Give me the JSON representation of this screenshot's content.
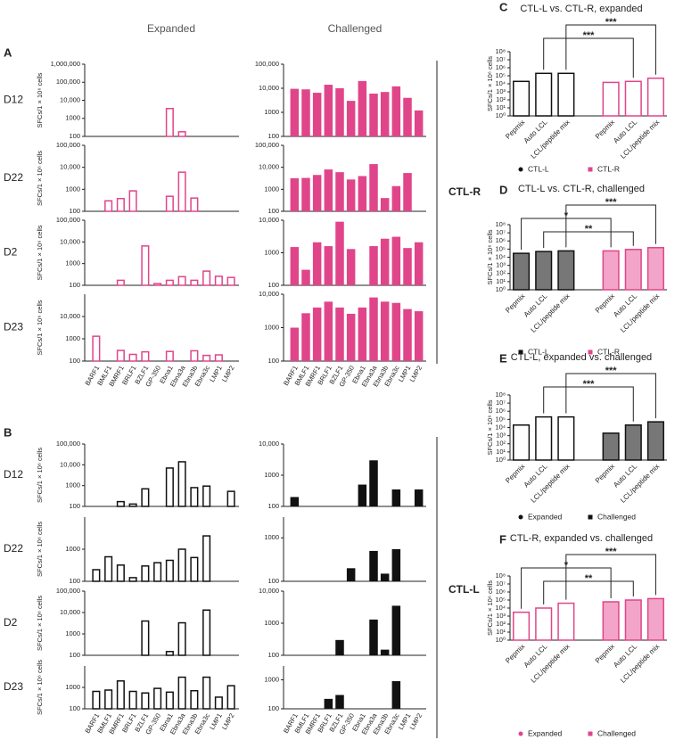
{
  "panel_labels": [
    "A",
    "B",
    "C",
    "D",
    "E",
    "F"
  ],
  "columns": [
    "Expanded",
    "Challenged"
  ],
  "group_labels": [
    "CTL-R",
    "CTL-L"
  ],
  "epitopes": [
    "BARF1",
    "BMLF1",
    "BMRF1",
    "BRLF1",
    "BZLF1",
    "GP-350",
    "Ebna1",
    "Ebna3a",
    "Ebna3b",
    "Ebna3c",
    "LMP1",
    "LMP2"
  ],
  "chart_data": [
    {
      "type": "bar",
      "row": "D12",
      "ylabel": "SFCs/1 × 10⁶ cells",
      "color": "#e0458a",
      "filled": false,
      "log": true,
      "ylim": [
        100,
        1000000
      ],
      "yticks": [
        100,
        1000,
        {
          "value": 10000,
          "label": "10,000"
        },
        {
          "value": 100000,
          "label": "100,000"
        },
        {
          "value": 1000000,
          "label": "1,000,000"
        }
      ],
      "values": [
        null,
        null,
        null,
        null,
        null,
        null,
        3500,
        180,
        null,
        null,
        null,
        null
      ]
    },
    {
      "type": "bar",
      "color": "#e0458a",
      "filled": true,
      "log": true,
      "ylim": [
        100,
        100000
      ],
      "yticks": [
        100,
        1000,
        {
          "value": 10000,
          "label": "10,000"
        },
        {
          "value": 100000,
          "label": "100,000"
        }
      ],
      "values": [
        9500,
        9000,
        6500,
        14000,
        10000,
        3000,
        20000,
        6000,
        7000,
        12000,
        4000,
        1200
      ]
    },
    {
      "type": "bar",
      "row": "D22",
      "ylabel": "SFCs/1 × 10⁶ cells",
      "color": "#e0458a",
      "filled": false,
      "log": true,
      "ylim": [
        100,
        100000
      ],
      "yticks": [
        100,
        1000,
        {
          "value": 10000,
          "label": "10,000"
        },
        {
          "value": 100000,
          "label": "100,000"
        }
      ],
      "values": [
        null,
        300,
        380,
        850,
        null,
        null,
        480,
        6000,
        400,
        null,
        null,
        null
      ]
    },
    {
      "type": "bar",
      "color": "#e0458a",
      "filled": true,
      "log": true,
      "ylim": [
        100,
        100000
      ],
      "yticks": [
        100,
        1000,
        {
          "value": 10000,
          "label": "10,000"
        },
        {
          "value": 100000,
          "label": "100,000"
        }
      ],
      "values": [
        3200,
        3300,
        4500,
        8000,
        6000,
        2800,
        4000,
        14000,
        400,
        1400,
        5500,
        null
      ]
    },
    {
      "type": "bar",
      "row": "D2",
      "ylabel": "SFCs/1 × 10⁶ cells",
      "color": "#e0458a",
      "filled": false,
      "log": true,
      "ylim": [
        100,
        100000
      ],
      "yticks": [
        100,
        1000,
        {
          "value": 10000,
          "label": "10,000"
        },
        {
          "value": 100000,
          "label": "100,000"
        }
      ],
      "values": [
        null,
        null,
        170,
        null,
        6500,
        120,
        170,
        250,
        170,
        450,
        260,
        230
      ]
    },
    {
      "type": "bar",
      "color": "#e0458a",
      "filled": true,
      "log": true,
      "ylim": [
        100,
        10000
      ],
      "yticks": [
        100,
        1000,
        {
          "value": 10000,
          "label": "10,000"
        }
      ],
      "values": [
        1500,
        300,
        2100,
        1600,
        9000,
        1300,
        null,
        1600,
        2700,
        3100,
        1400,
        2100
      ]
    },
    {
      "type": "bar",
      "row": "D23",
      "ylabel": "SFCs/1 × 10⁶ cells",
      "color": "#e0458a",
      "filled": false,
      "log": true,
      "ylim": [
        100,
        100000
      ],
      "yticks": [
        100,
        1000,
        {
          "value": 10000,
          "label": "10,000"
        }
      ],
      "values": [
        1300,
        null,
        300,
        200,
        260,
        null,
        270,
        null,
        290,
        180,
        190,
        null
      ]
    },
    {
      "type": "bar",
      "color": "#e0458a",
      "filled": true,
      "log": true,
      "ylim": [
        100,
        10000
      ],
      "yticks": [
        100,
        1000,
        {
          "value": 10000,
          "label": "10,000"
        }
      ],
      "values": [
        1000,
        2700,
        4000,
        6000,
        4000,
        2600,
        4000,
        8000,
        6000,
        5500,
        3600,
        3100
      ]
    },
    {
      "type": "bar",
      "row": "D12",
      "ylabel": "SFCs/1 × 10⁶ cells",
      "color": "#111111",
      "filled": false,
      "log": true,
      "ylim": [
        100,
        100000
      ],
      "yticks": [
        100,
        1000,
        {
          "value": 10000,
          "label": "10,000"
        },
        {
          "value": 100000,
          "label": "100,000"
        }
      ],
      "values": [
        null,
        null,
        170,
        130,
        700,
        null,
        7000,
        14000,
        800,
        950,
        null,
        530
      ]
    },
    {
      "type": "bar",
      "color": "#111111",
      "filled": true,
      "log": true,
      "ylim": [
        100,
        10000
      ],
      "yticks": [
        100,
        1000,
        {
          "value": 10000,
          "label": "10,000"
        }
      ],
      "values": [
        200,
        null,
        null,
        null,
        null,
        null,
        500,
        3000,
        null,
        350,
        null,
        350
      ]
    },
    {
      "type": "bar",
      "row": "D22",
      "ylabel": "SFCs/1 × 10⁶ cells",
      "color": "#111111",
      "filled": false,
      "log": true,
      "ylim": [
        100,
        10000
      ],
      "yticks": [
        100,
        1000
      ],
      "values": [
        230,
        580,
        320,
        130,
        300,
        380,
        450,
        1000,
        550,
        2600,
        null,
        null
      ]
    },
    {
      "type": "bar",
      "color": "#111111",
      "filled": true,
      "log": true,
      "ylim": [
        100,
        3000
      ],
      "yticks": [
        100,
        1000
      ],
      "values": [
        null,
        null,
        null,
        null,
        null,
        200,
        null,
        500,
        150,
        550,
        null,
        null
      ]
    },
    {
      "type": "bar",
      "row": "D2",
      "ylabel": "SFCs/1 × 10⁶ cells",
      "color": "#111111",
      "filled": false,
      "log": true,
      "ylim": [
        100,
        100000
      ],
      "yticks": [
        100,
        1000,
        {
          "value": 10000,
          "label": "10,000"
        },
        {
          "value": 100000,
          "label": "100,000"
        }
      ],
      "values": [
        null,
        null,
        null,
        null,
        4000,
        null,
        150,
        3300,
        null,
        13000,
        null,
        null
      ]
    },
    {
      "type": "bar",
      "color": "#111111",
      "filled": true,
      "log": true,
      "ylim": [
        100,
        10000
      ],
      "yticks": [
        100,
        1000,
        {
          "value": 10000,
          "label": "10,000"
        }
      ],
      "values": [
        null,
        null,
        null,
        null,
        300,
        null,
        null,
        1300,
        150,
        3500,
        null,
        null
      ]
    },
    {
      "type": "bar",
      "row": "D23",
      "ylabel": "SFCs/1 × 10⁶ cells",
      "color": "#111111",
      "filled": false,
      "log": true,
      "ylim": [
        100,
        10000
      ],
      "yticks": [
        100,
        1000
      ],
      "values": [
        650,
        750,
        2000,
        650,
        550,
        900,
        600,
        3000,
        700,
        3000,
        350,
        1200
      ]
    },
    {
      "type": "bar",
      "color": "#111111",
      "filled": true,
      "log": true,
      "ylim": [
        100,
        3000
      ],
      "yticks": [
        100,
        1000
      ],
      "values": [
        null,
        null,
        null,
        220,
        300,
        null,
        null,
        null,
        null,
        900,
        null,
        null
      ]
    },
    {
      "type": "grouped_bar",
      "title": "CTL-L vs. CTL-R, expanded",
      "ylabel": "SFCs/1 × 10⁶ cells",
      "log": true,
      "ylim": [
        1,
        100000000
      ],
      "yticks": [
        {
          "value": 1,
          "label": "10⁰"
        },
        {
          "value": 10,
          "label": "10¹"
        },
        {
          "value": 100,
          "label": "10²"
        },
        {
          "value": 1000,
          "label": "10³"
        },
        {
          "value": 10000,
          "label": "10⁴"
        },
        {
          "value": 100000,
          "label": "10⁵"
        },
        {
          "value": 1000000,
          "label": "10⁶"
        },
        {
          "value": 10000000,
          "label": "10⁷"
        },
        {
          "value": 100000000,
          "label": "10⁸"
        }
      ],
      "categories": [
        "Pepmix",
        "Auto LCL",
        "LCL/peptide mix"
      ],
      "series": [
        {
          "name": "CTL-L",
          "color": "#111111",
          "fill": "#ffffff",
          "marker": "circle",
          "values": [
            20000,
            200000,
            200000
          ]
        },
        {
          "name": "CTL-R",
          "color": "#e0458a",
          "fill": "#ffffff",
          "marker": "square",
          "values": [
            15000,
            20000,
            50000
          ]
        }
      ],
      "annotations": [
        {
          "text": "***",
          "pair": [
            2,
            5
          ]
        },
        {
          "text": "***",
          "pair": [
            1,
            4
          ]
        }
      ]
    },
    {
      "type": "grouped_bar",
      "title": "CTL-L vs. CTL-R, challenged",
      "ylabel": "SFCs/1 × 10⁶ cells",
      "log": true,
      "ylim": [
        1,
        100000000
      ],
      "yticks": [
        {
          "value": 1,
          "label": "10⁰"
        },
        {
          "value": 10,
          "label": "10¹"
        },
        {
          "value": 100,
          "label": "10²"
        },
        {
          "value": 1000,
          "label": "10³"
        },
        {
          "value": 10000,
          "label": "10⁴"
        },
        {
          "value": 100000,
          "label": "10⁵"
        },
        {
          "value": 1000000,
          "label": "10⁶"
        },
        {
          "value": 10000000,
          "label": "10⁷"
        },
        {
          "value": 100000000,
          "label": "10⁸"
        }
      ],
      "categories": [
        "Pepmix",
        "Auto LCL",
        "LCL/peptide mix"
      ],
      "series": [
        {
          "name": "CTL-L",
          "color": "#111111",
          "fill": "#777777",
          "marker": "square",
          "values": [
            30000,
            50000,
            60000
          ]
        },
        {
          "name": "CTL-R",
          "color": "#e0458a",
          "fill": "#f2a5c8",
          "marker": "square",
          "values": [
            60000,
            90000,
            150000
          ]
        }
      ],
      "annotations": [
        {
          "text": "***",
          "pair": [
            2,
            5
          ]
        },
        {
          "text": "*",
          "pair": [
            0,
            3
          ]
        },
        {
          "text": "**",
          "pair": [
            1,
            4
          ]
        }
      ]
    },
    {
      "type": "grouped_bar",
      "title": "CTL-L, expanded vs. challenged",
      "ylabel": "SFCs/1 × 10⁶ cells",
      "log": true,
      "ylim": [
        1,
        100000000
      ],
      "yticks": [
        {
          "value": 1,
          "label": "10⁰"
        },
        {
          "value": 10,
          "label": "10¹"
        },
        {
          "value": 100,
          "label": "10²"
        },
        {
          "value": 1000,
          "label": "10³"
        },
        {
          "value": 10000,
          "label": "10⁴"
        },
        {
          "value": 100000,
          "label": "10⁵"
        },
        {
          "value": 1000000,
          "label": "10⁶"
        },
        {
          "value": 10000000,
          "label": "10⁷"
        },
        {
          "value": 100000000,
          "label": "10⁸"
        }
      ],
      "categories": [
        "Pepmix",
        "Auto LCL",
        "LCL/peptide mix"
      ],
      "series": [
        {
          "name": "Expanded",
          "color": "#111111",
          "fill": "#ffffff",
          "marker": "circle",
          "values": [
            20000,
            200000,
            200000
          ]
        },
        {
          "name": "Challenged",
          "color": "#111111",
          "fill": "#777777",
          "marker": "square",
          "values": [
            2000,
            20000,
            50000
          ]
        }
      ],
      "annotations": [
        {
          "text": "***",
          "pair": [
            2,
            5
          ]
        },
        {
          "text": "***",
          "pair": [
            1,
            4
          ]
        }
      ]
    },
    {
      "type": "grouped_bar",
      "title": "CTL-R, expanded vs. challenged",
      "ylabel": "SFCs/1 × 10⁶ cells",
      "log": true,
      "ylim": [
        1,
        100000000
      ],
      "yticks": [
        {
          "value": 1,
          "label": "10⁰"
        },
        {
          "value": 10,
          "label": "10¹"
        },
        {
          "value": 100,
          "label": "10²"
        },
        {
          "value": 1000,
          "label": "10³"
        },
        {
          "value": 10000,
          "label": "10⁴"
        },
        {
          "value": 100000,
          "label": "10⁵"
        },
        {
          "value": 1000000,
          "label": "10⁶"
        },
        {
          "value": 10000000,
          "label": "10⁷"
        },
        {
          "value": 100000000,
          "label": "10⁸"
        }
      ],
      "categories": [
        "Pepmix",
        "Auto LCL",
        "LCL/peptide mix"
      ],
      "series": [
        {
          "name": "Expanded",
          "color": "#e0458a",
          "fill": "#ffffff",
          "marker": "circle",
          "values": [
            3000,
            10000,
            40000
          ]
        },
        {
          "name": "Challenged",
          "color": "#e0458a",
          "fill": "#f2a5c8",
          "marker": "square",
          "values": [
            60000,
            100000,
            150000
          ]
        }
      ],
      "annotations": [
        {
          "text": "***",
          "pair": [
            2,
            5
          ]
        },
        {
          "text": "*",
          "pair": [
            0,
            3
          ]
        },
        {
          "text": "**",
          "pair": [
            1,
            4
          ]
        }
      ]
    }
  ]
}
